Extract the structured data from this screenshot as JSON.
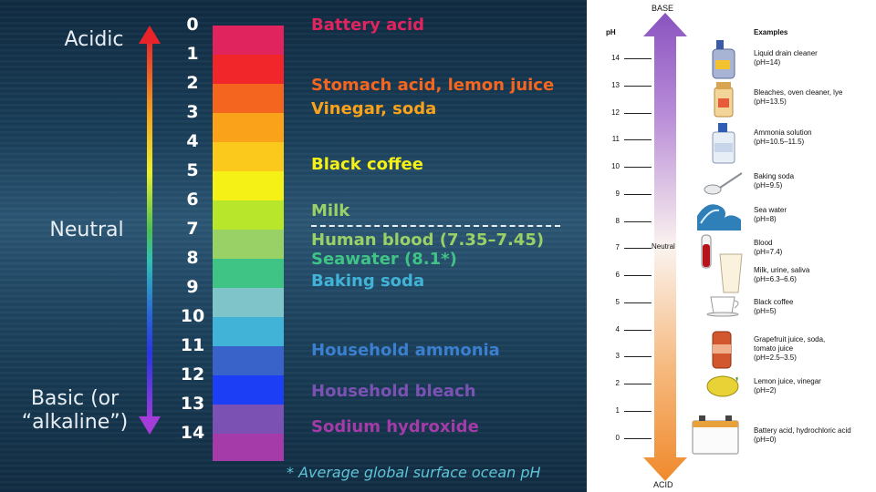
{
  "left_panel": {
    "acidic_label": "Acidic",
    "neutral_label": "Neutral",
    "basic_label_line1": "Basic (or",
    "basic_label_line2": "“alkaline”)",
    "scale": [
      {
        "ph": "0",
        "color": "#e0245e"
      },
      {
        "ph": "1",
        "color": "#f0262a"
      },
      {
        "ph": "2",
        "color": "#f4661f"
      },
      {
        "ph": "3",
        "color": "#f9a21a"
      },
      {
        "ph": "4",
        "color": "#fbc91b"
      },
      {
        "ph": "5",
        "color": "#f5f016"
      },
      {
        "ph": "6",
        "color": "#b8e62b"
      },
      {
        "ph": "7",
        "color": "#9ad167"
      },
      {
        "ph": "8",
        "color": "#3fc486"
      },
      {
        "ph": "9",
        "color": "#7fc4c9"
      },
      {
        "ph": "10",
        "color": "#41b3d6"
      },
      {
        "ph": "11",
        "color": "#3a63c9"
      },
      {
        "ph": "12",
        "color": "#1c3ff5"
      },
      {
        "ph": "13",
        "color": "#7b52b4"
      },
      {
        "ph": "14",
        "color": "#a43ba8"
      }
    ],
    "examples": [
      {
        "text": "Battery acid",
        "color": "#e0245e"
      },
      {
        "text": "Stomach acid, lemon juice",
        "color": "#f4661f"
      },
      {
        "text": "Vinegar, soda",
        "color": "#f9a21a"
      },
      {
        "text": "Black coffee",
        "color": "#f5f016"
      },
      {
        "text": "Milk",
        "color": "#9ad167"
      },
      {
        "text": "Human blood (7.35–7.45)",
        "color": "#9ad167"
      },
      {
        "text": "Seawater (8.1*)",
        "color": "#3fc486"
      },
      {
        "text": "Baking soda",
        "color": "#41b3d6"
      },
      {
        "text": "Household ammonia",
        "color": "#3a7fd0"
      },
      {
        "text": "Household bleach",
        "color": "#7b52b4"
      },
      {
        "text": "Sodium hydroxide",
        "color": "#a43ba8"
      }
    ],
    "footnote": "* Average global surface ocean pH"
  },
  "right_panel": {
    "top_label": "BASE",
    "bottom_label": "ACID",
    "ph_header": "pH",
    "examples_header": "Examples",
    "neutral_label": "Neutral",
    "ticks": [
      "14",
      "13",
      "12",
      "11",
      "10",
      "9",
      "8",
      "7",
      "6",
      "5",
      "4",
      "3",
      "2",
      "1",
      "0"
    ],
    "examples": [
      {
        "line1": "Liquid drain cleaner",
        "line2": "(pH=14)",
        "icon": "drain-cleaner-bottle-icon"
      },
      {
        "line1": "Bleaches, oven cleaner, lye",
        "line2": "(pH=13.5)",
        "icon": "bleach-container-icon"
      },
      {
        "line1": "Ammonia solution",
        "line2": "(pH=10.5–11.5)",
        "icon": "ammonia-bottle-icon"
      },
      {
        "line1": "Baking soda",
        "line2": "(pH=9.5)",
        "icon": "spoon-icon"
      },
      {
        "line1": "Sea water",
        "line2": "(pH=8)",
        "icon": "wave-icon"
      },
      {
        "line1": "Blood",
        "line2": "(pH=7.4)",
        "icon": "blood-tube-icon"
      },
      {
        "line1": "Milk, urine, saliva",
        "line2": "(pH=6.3–6.6)",
        "icon": "glass-of-milk-icon"
      },
      {
        "line1": "Black coffee",
        "line2": "(pH=5)",
        "icon": "coffee-cup-icon"
      },
      {
        "line1": "Grapefruit juice, soda,",
        "line2": "tomato juice",
        "line3": "(pH=2.5–3.5)",
        "icon": "soda-can-icon"
      },
      {
        "line1": "Lemon juice, vinegar",
        "line2": "(pH=2)",
        "icon": "lemon-icon"
      },
      {
        "line1": "Battery acid, hydrochloric acid",
        "line2": "(pH=0)",
        "icon": "car-battery-icon"
      }
    ]
  }
}
